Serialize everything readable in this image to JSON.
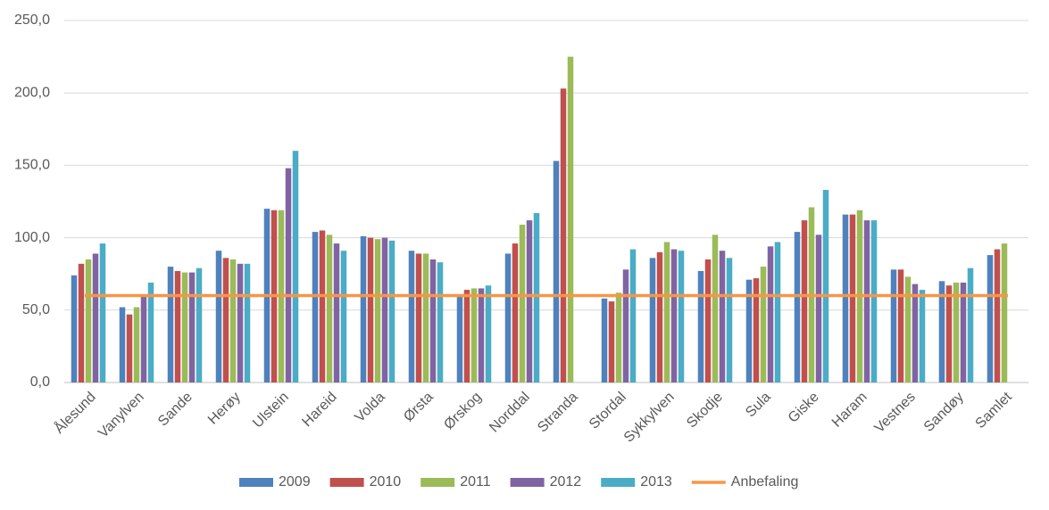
{
  "chart_data": {
    "type": "bar",
    "categories": [
      "Ålesund",
      "Vanylven",
      "Sande",
      "Herøy",
      "Ulstein",
      "Hareid",
      "Volda",
      "Ørsta",
      "Ørskog",
      "Norddal",
      "Stranda",
      "Stordal",
      "Sykkylven",
      "Skodje",
      "Sula",
      "Giske",
      "Haram",
      "Vestnes",
      "Sandøy",
      "Samlet"
    ],
    "series": [
      {
        "name": "2009",
        "color": "#4f81bd",
        "values": [
          74,
          52,
          80,
          91,
          120,
          104,
          101,
          91,
          60,
          89,
          153,
          58,
          86,
          77,
          71,
          104,
          116,
          78,
          70,
          88
        ]
      },
      {
        "name": "2010",
        "color": "#c0504d",
        "values": [
          82,
          47,
          77,
          86,
          119,
          105,
          100,
          89,
          64,
          96,
          203,
          56,
          90,
          85,
          72,
          112,
          116,
          78,
          67,
          92
        ]
      },
      {
        "name": "2011",
        "color": "#9bbb59",
        "values": [
          85,
          52,
          76,
          85,
          119,
          102,
          99,
          89,
          65,
          109,
          225,
          62,
          97,
          102,
          80,
          121,
          119,
          73,
          69,
          96
        ]
      },
      {
        "name": "2012",
        "color": "#8064a2",
        "values": [
          89,
          60,
          76,
          82,
          148,
          96,
          100,
          85,
          65,
          112,
          null,
          78,
          92,
          91,
          94,
          102,
          112,
          68,
          69,
          null
        ]
      },
      {
        "name": "2013",
        "color": "#4bacc6",
        "values": [
          96,
          69,
          79,
          82,
          160,
          91,
          98,
          83,
          67,
          117,
          null,
          92,
          91,
          86,
          97,
          133,
          112,
          64,
          79,
          null
        ]
      },
      {
        "name": "Anbefaling",
        "type": "line",
        "color": "#f79646",
        "values": [
          60,
          60,
          60,
          60,
          60,
          60,
          60,
          60,
          60,
          60,
          60,
          60,
          60,
          60,
          60,
          60,
          60,
          60,
          60,
          60
        ]
      }
    ],
    "ylim": [
      0,
      250
    ],
    "yticks": [
      {
        "value": 0,
        "label": "0,0"
      },
      {
        "value": 50,
        "label": "50,0"
      },
      {
        "value": 100,
        "label": "100,0"
      },
      {
        "value": 150,
        "label": "150,0"
      },
      {
        "value": 200,
        "label": "200,0"
      },
      {
        "value": 250,
        "label": "250,0"
      }
    ],
    "grid": true,
    "legend": "bottom"
  }
}
